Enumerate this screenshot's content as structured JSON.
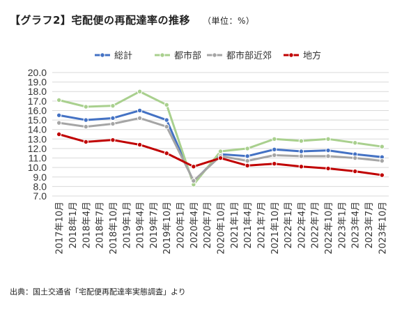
{
  "title": "【グラフ2】宅配便の再配達率の推移",
  "unit_label": "（単位：%）",
  "source": "出典：国土交通省「宅配便再配達率実態調査」より",
  "chart_data": {
    "type": "line",
    "categories": [
      "2017年10月",
      "2018年1月",
      "2018年4月",
      "2018年7月",
      "2018年10月",
      "2019年1月",
      "2019年4月",
      "2019年7月",
      "2019年10月",
      "2020年1月",
      "2020年4月",
      "2020年7月",
      "2020年10月",
      "2021年1月",
      "2021年4月",
      "2021年7月",
      "2021年10月",
      "2022年1月",
      "2022年4月",
      "2022年7月",
      "2022年10月",
      "2023年1月",
      "2023年4月",
      "2023年7月",
      "2023年10月"
    ],
    "series": [
      {
        "name": "総計",
        "color": "#4472c4",
        "x": [
          0,
          2,
          4,
          6,
          8,
          10,
          12,
          14,
          16,
          18,
          20,
          22,
          24
        ],
        "values": [
          15.5,
          15.0,
          15.2,
          16.0,
          15.0,
          8.5,
          11.4,
          11.2,
          11.9,
          11.7,
          11.8,
          11.4,
          11.1
        ]
      },
      {
        "name": "都市部",
        "color": "#a9d08e",
        "x": [
          0,
          2,
          4,
          6,
          8,
          10,
          12,
          14,
          16,
          18,
          20,
          22,
          24
        ],
        "values": [
          17.1,
          16.4,
          16.5,
          18.0,
          16.6,
          8.2,
          11.7,
          12.0,
          13.0,
          12.8,
          13.0,
          12.6,
          12.2
        ]
      },
      {
        "name": "都市部近郊",
        "color": "#a5a5a5",
        "x": [
          0,
          2,
          4,
          6,
          8,
          10,
          12,
          14,
          16,
          18,
          20,
          22,
          24
        ],
        "values": [
          14.7,
          14.3,
          14.6,
          15.2,
          14.3,
          8.6,
          11.2,
          10.7,
          11.3,
          11.2,
          11.2,
          11.0,
          10.7
        ]
      },
      {
        "name": "地方",
        "color": "#c00000",
        "x": [
          0,
          2,
          4,
          6,
          8,
          10,
          12,
          14,
          16,
          18,
          20,
          22,
          24
        ],
        "values": [
          13.5,
          12.7,
          12.9,
          12.4,
          11.5,
          10.1,
          11.0,
          10.2,
          10.4,
          10.1,
          9.9,
          9.6,
          9.2
        ]
      }
    ],
    "ylim": [
      7.0,
      20.0
    ],
    "yticks": [
      "7.0",
      "8.0",
      "9.0",
      "10.0",
      "11.0",
      "12.0",
      "13.0",
      "14.0",
      "15.0",
      "16.0",
      "17.0",
      "18.0",
      "19.0",
      "20.0"
    ],
    "grid": true,
    "legend": "top"
  }
}
